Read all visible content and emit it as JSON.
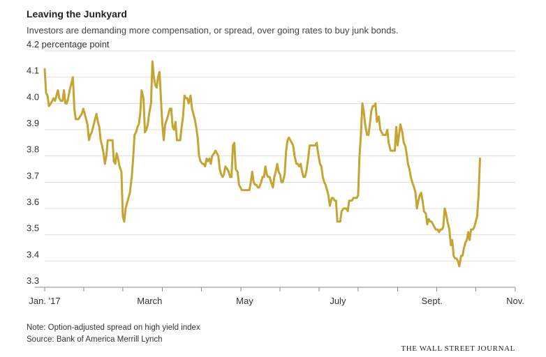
{
  "header": {
    "title": "Leaving the Junkyard",
    "subtitle": "Investors are demanding more compensation, or spread, over going rates to buy junk bonds."
  },
  "footer": {
    "note": "Note: Option-adjusted spread on high yield index",
    "source": "Source: Bank of America Merrill Lynch",
    "brand": "THE WALL STREET JOURNAL"
  },
  "colors": {
    "line": "#c4a533",
    "grid": "#dddddd",
    "axis": "#888888",
    "text": "#333333"
  },
  "chart_data": {
    "type": "line",
    "title": "Leaving the Junkyard",
    "subtitle": "Investors are demanding more compensation, or spread, over going rates to buy junk bonds.",
    "ylim": [
      3.3,
      4.2
    ],
    "y_unit_label": "percentage point",
    "y_ticks": [
      3.3,
      3.4,
      3.5,
      3.6,
      3.7,
      3.8,
      3.9,
      4.0,
      4.1,
      4.2
    ],
    "y_tick_labels": [
      "3.3",
      "3.4",
      "3.5",
      "3.6",
      "3.7",
      "3.8",
      "3.9",
      "4.0",
      "4.1",
      "4.2 percentage point"
    ],
    "xlim": [
      0,
      1
    ],
    "x_ticks": [
      0,
      0.083,
      0.166,
      0.25,
      0.333,
      0.417,
      0.5,
      0.583,
      0.666,
      0.75,
      0.833,
      0.916,
      1.0
    ],
    "x_tick_labels": [
      {
        "x": 0.0,
        "label": "Jan. '17"
      },
      {
        "x": 0.223,
        "label": "March"
      },
      {
        "x": 0.425,
        "label": "May"
      },
      {
        "x": 0.623,
        "label": "July"
      },
      {
        "x": 0.823,
        "label": "Sept."
      },
      {
        "x": 1.0,
        "label": "Nov."
      }
    ],
    "grid": true,
    "series": [
      {
        "values": [
          [
            0.0,
            4.13
          ],
          [
            0.003,
            4.04
          ],
          [
            0.006,
            4.03
          ],
          [
            0.009,
            3.99
          ],
          [
            0.013,
            4.0
          ],
          [
            0.016,
            4.01
          ],
          [
            0.019,
            4.02
          ],
          [
            0.022,
            4.01
          ],
          [
            0.025,
            4.03
          ],
          [
            0.028,
            4.05
          ],
          [
            0.031,
            4.02
          ],
          [
            0.034,
            4.01
          ],
          [
            0.038,
            4.01
          ],
          [
            0.041,
            4.05
          ],
          [
            0.044,
            4.0
          ],
          [
            0.047,
            4.0
          ],
          [
            0.05,
            4.02
          ],
          [
            0.053,
            4.05
          ],
          [
            0.056,
            4.07
          ],
          [
            0.06,
            4.1
          ],
          [
            0.063,
            3.98
          ],
          [
            0.066,
            3.94
          ],
          [
            0.069,
            3.94
          ],
          [
            0.072,
            3.94
          ],
          [
            0.075,
            3.95
          ],
          [
            0.079,
            3.96
          ],
          [
            0.082,
            3.98
          ],
          [
            0.085,
            3.96
          ],
          [
            0.088,
            3.94
          ],
          [
            0.091,
            3.92
          ],
          [
            0.094,
            3.86
          ],
          [
            0.097,
            3.88
          ],
          [
            0.1,
            3.89
          ],
          [
            0.103,
            3.91
          ],
          [
            0.107,
            3.94
          ],
          [
            0.11,
            3.96
          ],
          [
            0.113,
            3.93
          ],
          [
            0.116,
            3.91
          ],
          [
            0.119,
            3.86
          ],
          [
            0.122,
            3.84
          ],
          [
            0.125,
            3.81
          ],
          [
            0.128,
            3.77
          ],
          [
            0.131,
            3.8
          ],
          [
            0.134,
            3.86
          ],
          [
            0.138,
            3.86
          ],
          [
            0.141,
            3.86
          ],
          [
            0.144,
            3.86
          ],
          [
            0.147,
            3.78
          ],
          [
            0.15,
            3.77
          ],
          [
            0.153,
            3.81
          ],
          [
            0.156,
            3.79
          ],
          [
            0.159,
            3.76
          ],
          [
            0.163,
            3.74
          ],
          [
            0.166,
            3.57
          ],
          [
            0.169,
            3.55
          ],
          [
            0.172,
            3.6
          ],
          [
            0.175,
            3.62
          ],
          [
            0.178,
            3.64
          ],
          [
            0.181,
            3.66
          ],
          [
            0.185,
            3.72
          ],
          [
            0.188,
            3.79
          ],
          [
            0.191,
            3.88
          ],
          [
            0.194,
            3.89
          ],
          [
            0.197,
            3.91
          ],
          [
            0.2,
            3.92
          ],
          [
            0.203,
            3.96
          ],
          [
            0.206,
            4.05
          ],
          [
            0.21,
            4.02
          ],
          [
            0.213,
            3.89
          ],
          [
            0.216,
            3.9
          ],
          [
            0.219,
            3.92
          ],
          [
            0.222,
            3.96
          ],
          [
            0.226,
            4.0
          ],
          [
            0.229,
            4.16
          ],
          [
            0.232,
            4.1
          ],
          [
            0.235,
            4.07
          ],
          [
            0.238,
            4.06
          ],
          [
            0.241,
            4.1
          ],
          [
            0.244,
            4.12
          ],
          [
            0.247,
            4.02
          ],
          [
            0.25,
            3.92
          ],
          [
            0.253,
            3.86
          ],
          [
            0.256,
            3.92
          ],
          [
            0.26,
            3.94
          ],
          [
            0.263,
            3.96
          ],
          [
            0.266,
            3.98
          ],
          [
            0.269,
            3.98
          ],
          [
            0.272,
            3.91
          ],
          [
            0.275,
            3.9
          ],
          [
            0.278,
            3.93
          ],
          [
            0.281,
            3.86
          ],
          [
            0.285,
            3.86
          ],
          [
            0.288,
            3.86
          ],
          [
            0.291,
            3.91
          ],
          [
            0.294,
            3.95
          ],
          [
            0.297,
            4.03
          ],
          [
            0.3,
            4.02
          ],
          [
            0.303,
            4.02
          ],
          [
            0.306,
            4.0
          ],
          [
            0.31,
            4.03
          ],
          [
            0.313,
            3.98
          ],
          [
            0.316,
            3.96
          ],
          [
            0.319,
            3.94
          ],
          [
            0.322,
            3.91
          ],
          [
            0.325,
            3.87
          ],
          [
            0.328,
            3.8
          ],
          [
            0.331,
            3.78
          ],
          [
            0.335,
            3.77
          ],
          [
            0.338,
            3.77
          ],
          [
            0.341,
            3.76
          ],
          [
            0.344,
            3.79
          ],
          [
            0.347,
            3.78
          ],
          [
            0.35,
            3.79
          ],
          [
            0.353,
            3.77
          ],
          [
            0.356,
            3.8
          ],
          [
            0.36,
            3.81
          ],
          [
            0.363,
            3.82
          ],
          [
            0.366,
            3.81
          ],
          [
            0.369,
            3.8
          ],
          [
            0.372,
            3.75
          ],
          [
            0.375,
            3.73
          ],
          [
            0.378,
            3.72
          ],
          [
            0.381,
            3.73
          ],
          [
            0.384,
            3.76
          ],
          [
            0.388,
            3.75
          ],
          [
            0.391,
            3.74
          ],
          [
            0.394,
            3.72
          ],
          [
            0.397,
            3.72
          ],
          [
            0.4,
            3.84
          ],
          [
            0.403,
            3.85
          ],
          [
            0.406,
            3.75
          ],
          [
            0.41,
            3.74
          ],
          [
            0.413,
            3.69
          ],
          [
            0.416,
            3.68
          ],
          [
            0.419,
            3.67
          ],
          [
            0.422,
            3.67
          ],
          [
            0.425,
            3.67
          ],
          [
            0.428,
            3.67
          ],
          [
            0.431,
            3.67
          ],
          [
            0.435,
            3.67
          ],
          [
            0.438,
            3.7
          ],
          [
            0.441,
            3.74
          ],
          [
            0.444,
            3.7
          ],
          [
            0.447,
            3.69
          ],
          [
            0.45,
            3.69
          ],
          [
            0.453,
            3.68
          ],
          [
            0.456,
            3.68
          ],
          [
            0.46,
            3.7
          ],
          [
            0.463,
            3.72
          ],
          [
            0.466,
            3.72
          ],
          [
            0.469,
            3.76
          ],
          [
            0.472,
            3.73
          ],
          [
            0.475,
            3.72
          ],
          [
            0.478,
            3.72
          ],
          [
            0.481,
            3.7
          ],
          [
            0.485,
            3.68
          ],
          [
            0.488,
            3.72
          ],
          [
            0.491,
            3.74
          ],
          [
            0.494,
            3.77
          ],
          [
            0.497,
            3.74
          ],
          [
            0.5,
            3.73
          ],
          [
            0.503,
            3.7
          ],
          [
            0.506,
            3.7
          ],
          [
            0.51,
            3.73
          ],
          [
            0.513,
            3.82
          ],
          [
            0.516,
            3.86
          ],
          [
            0.519,
            3.87
          ],
          [
            0.522,
            3.86
          ],
          [
            0.525,
            3.85
          ],
          [
            0.528,
            3.84
          ],
          [
            0.531,
            3.8
          ],
          [
            0.535,
            3.77
          ],
          [
            0.538,
            3.77
          ],
          [
            0.541,
            3.76
          ],
          [
            0.544,
            3.77
          ],
          [
            0.547,
            3.74
          ],
          [
            0.55,
            3.72
          ],
          [
            0.553,
            3.72
          ],
          [
            0.556,
            3.74
          ],
          [
            0.56,
            3.79
          ],
          [
            0.563,
            3.84
          ],
          [
            0.566,
            3.84
          ],
          [
            0.569,
            3.84
          ],
          [
            0.572,
            3.84
          ],
          [
            0.575,
            3.84
          ],
          [
            0.578,
            3.85
          ],
          [
            0.581,
            3.81
          ],
          [
            0.585,
            3.77
          ],
          [
            0.588,
            3.76
          ],
          [
            0.591,
            3.72
          ],
          [
            0.594,
            3.7
          ],
          [
            0.597,
            3.69
          ],
          [
            0.6,
            3.67
          ],
          [
            0.603,
            3.65
          ],
          [
            0.606,
            3.61
          ],
          [
            0.61,
            3.64
          ],
          [
            0.613,
            3.64
          ],
          [
            0.616,
            3.63
          ],
          [
            0.619,
            3.63
          ],
          [
            0.622,
            3.55
          ],
          [
            0.625,
            3.55
          ],
          [
            0.628,
            3.55
          ],
          [
            0.631,
            3.59
          ],
          [
            0.635,
            3.6
          ],
          [
            0.638,
            3.6
          ],
          [
            0.641,
            3.6
          ],
          [
            0.644,
            3.59
          ],
          [
            0.647,
            3.63
          ],
          [
            0.65,
            3.63
          ],
          [
            0.653,
            3.63
          ],
          [
            0.656,
            3.64
          ],
          [
            0.66,
            3.64
          ],
          [
            0.663,
            3.64
          ],
          [
            0.666,
            3.65
          ],
          [
            0.669,
            3.8
          ],
          [
            0.672,
            3.88
          ],
          [
            0.675,
            4.0
          ],
          [
            0.678,
            3.97
          ],
          [
            0.681,
            3.92
          ],
          [
            0.685,
            3.88
          ],
          [
            0.688,
            3.88
          ],
          [
            0.691,
            3.92
          ],
          [
            0.694,
            3.97
          ],
          [
            0.697,
            3.99
          ],
          [
            0.7,
            3.99
          ],
          [
            0.703,
            4.0
          ],
          [
            0.706,
            3.93
          ],
          [
            0.71,
            3.95
          ],
          [
            0.713,
            3.9
          ],
          [
            0.716,
            3.89
          ],
          [
            0.719,
            3.88
          ],
          [
            0.722,
            3.88
          ],
          [
            0.725,
            3.88
          ],
          [
            0.728,
            3.9
          ],
          [
            0.731,
            3.85
          ],
          [
            0.735,
            3.82
          ],
          [
            0.738,
            3.82
          ],
          [
            0.741,
            3.82
          ],
          [
            0.744,
            3.82
          ],
          [
            0.747,
            3.91
          ],
          [
            0.75,
            3.84
          ],
          [
            0.753,
            3.88
          ],
          [
            0.756,
            3.92
          ],
          [
            0.76,
            3.89
          ],
          [
            0.763,
            3.85
          ],
          [
            0.766,
            3.84
          ],
          [
            0.769,
            3.81
          ],
          [
            0.772,
            3.77
          ],
          [
            0.775,
            3.75
          ],
          [
            0.778,
            3.72
          ],
          [
            0.781,
            3.7
          ],
          [
            0.785,
            3.68
          ],
          [
            0.788,
            3.66
          ],
          [
            0.791,
            3.6
          ],
          [
            0.794,
            3.63
          ],
          [
            0.797,
            3.65
          ],
          [
            0.8,
            3.66
          ],
          [
            0.803,
            3.63
          ],
          [
            0.806,
            3.59
          ],
          [
            0.81,
            3.58
          ],
          [
            0.813,
            3.54
          ],
          [
            0.816,
            3.56
          ],
          [
            0.819,
            3.55
          ],
          [
            0.822,
            3.55
          ],
          [
            0.825,
            3.54
          ],
          [
            0.828,
            3.53
          ],
          [
            0.831,
            3.52
          ],
          [
            0.835,
            3.52
          ],
          [
            0.838,
            3.51
          ],
          [
            0.841,
            3.52
          ],
          [
            0.844,
            3.52
          ],
          [
            0.847,
            3.53
          ],
          [
            0.85,
            3.6
          ],
          [
            0.853,
            3.58
          ],
          [
            0.856,
            3.55
          ],
          [
            0.86,
            3.52
          ],
          [
            0.863,
            3.46
          ],
          [
            0.866,
            3.48
          ],
          [
            0.869,
            3.42
          ],
          [
            0.872,
            3.41
          ],
          [
            0.875,
            3.41
          ],
          [
            0.878,
            3.4
          ],
          [
            0.881,
            3.38
          ],
          [
            0.885,
            3.42
          ],
          [
            0.888,
            3.42
          ],
          [
            0.891,
            3.45
          ],
          [
            0.894,
            3.47
          ],
          [
            0.897,
            3.48
          ],
          [
            0.9,
            3.51
          ],
          [
            0.903,
            3.48
          ],
          [
            0.906,
            3.52
          ],
          [
            0.91,
            3.52
          ],
          [
            0.913,
            3.53
          ],
          [
            0.916,
            3.55
          ],
          [
            0.919,
            3.57
          ],
          [
            0.922,
            3.65
          ],
          [
            0.925,
            3.79
          ]
        ]
      }
    ]
  }
}
